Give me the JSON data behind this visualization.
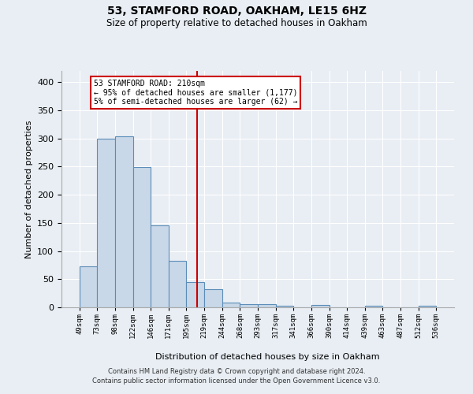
{
  "title1": "53, STAMFORD ROAD, OAKHAM, LE15 6HZ",
  "title2": "Size of property relative to detached houses in Oakham",
  "xlabel": "Distribution of detached houses by size in Oakham",
  "ylabel": "Number of detached properties",
  "bin_labels": [
    "49sqm",
    "73sqm",
    "98sqm",
    "122sqm",
    "146sqm",
    "171sqm",
    "195sqm",
    "219sqm",
    "244sqm",
    "268sqm",
    "293sqm",
    "317sqm",
    "341sqm",
    "366sqm",
    "390sqm",
    "414sqm",
    "439sqm",
    "463sqm",
    "487sqm",
    "512sqm",
    "536sqm"
  ],
  "bar_heights": [
    73,
    300,
    304,
    249,
    145,
    83,
    45,
    32,
    9,
    6,
    6,
    3,
    0,
    4,
    0,
    0,
    3,
    0,
    0,
    3
  ],
  "bar_color": "#c8d8e8",
  "bar_edge_color": "#5b8db8",
  "red_line_color": "#cc0000",
  "annotation_text": "53 STAMFORD ROAD: 210sqm\n← 95% of detached houses are smaller (1,177)\n5% of semi-detached houses are larger (62) →",
  "annotation_box_color": "#ffffff",
  "annotation_box_edge": "#cc0000",
  "footer1": "Contains HM Land Registry data © Crown copyright and database right 2024.",
  "footer2": "Contains public sector information licensed under the Open Government Licence v3.0.",
  "ylim": [
    0,
    420
  ],
  "yticks": [
    0,
    50,
    100,
    150,
    200,
    250,
    300,
    350,
    400
  ],
  "bg_color": "#e8eef4",
  "grid_color": "#ffffff",
  "subject_bin_index": 6.6
}
